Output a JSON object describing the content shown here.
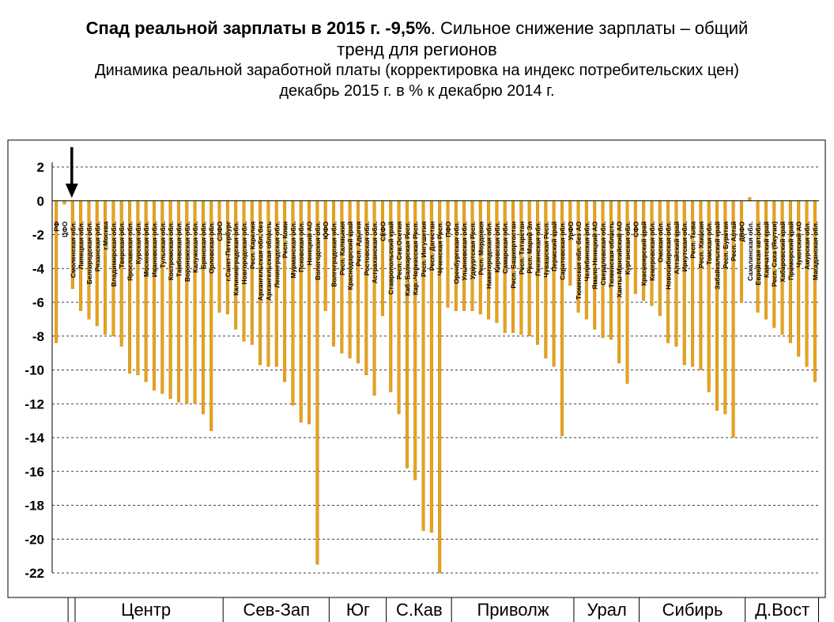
{
  "title": {
    "bold": "Спад реальной зарплаты в 2015 г. -9,5%",
    "rest": ". Сильное снижение зарплаты – общий",
    "line2": "тренд для регионов"
  },
  "subtitle": {
    "line1": "Динамика реальной заработной платы (корректировка на индекс потребительских цен)",
    "line2": "декабрь 2015 г. в % к декабрю 2014 г."
  },
  "colors": {
    "bar": "#e8a31c",
    "bar_edge": "#b9820f",
    "grid": "#000000"
  },
  "chart_data": {
    "type": "bar",
    "ylim": [
      -22,
      2
    ],
    "yticks": [
      2,
      0,
      -2,
      -4,
      -6,
      -8,
      -10,
      -12,
      -14,
      -16,
      -18,
      -20,
      -22
    ],
    "grid": "dashed horizontal",
    "annotation": "arrow pointing down at Смоленская обл.",
    "categories": [
      "РФ",
      "ЦФО",
      "Смоленская обл.",
      "Липецкая обл.",
      "Белгородская обл.",
      "Рязанская обл.",
      "г.Москва",
      "Владимирская обл.",
      "Тверская обл.",
      "Ярославская обл.",
      "Курская обл.",
      "Московская обл.",
      "Ивановская обл.",
      "Тульская обл.",
      "Костромская обл.",
      "Тамбовская обл.",
      "Воронежская обл.",
      "Калужская обл.",
      "Брянская обл.",
      "Орловская обл.",
      "СЗФО",
      "г.Санкт-Петербург",
      "Калининградская обл.",
      "Новгородская обл.",
      "Респ. Карелия",
      "Архангельская обл. без",
      "Архангельская область",
      "Ленинградская обл.",
      "Респ. Коми",
      "Мурманская обл.",
      "Псковская обл.",
      "Ненецкий АО",
      "Вологодская обл.",
      "ЮФО",
      "Волгоградская обл.",
      "Респ. Калмыкия",
      "Краснодарский край",
      "Респ. Адыгея",
      "Ростовская обл.",
      "Астраханская обл.",
      "СКФО",
      "Ставропольский край",
      "Респ. Сев.Осетия",
      "Каб.-Балкарская Респ.",
      "Кар.-Черкесская Респ.",
      "Респ. Ингушетия",
      "Респ. Дагестан",
      "Чеченская Респ.",
      "ПФО",
      "Оренбургская обл.",
      "Ульяновская обл.",
      "Удмуртская Респ.",
      "Респ. Мордовия",
      "Нижегородская обл.",
      "Кировская обл.",
      "Самарская обл.",
      "Респ. Башкортостан",
      "Респ. Татарстан",
      "Респ. Марий Эл",
      "Пензенская обл.",
      "Чувашская Респ.",
      "Пермский край",
      "Саратовская обл.",
      "УрФО",
      "Тюменская обл. без АО",
      "Челябинская обл.",
      "Ямало-Ненецкий АО",
      "Свердловская обл.",
      "Тюменская область",
      "Ханты-Мансийский АО",
      "Курганская обл.",
      "СФО",
      "Красноярский край",
      "Кемеровская обл.",
      "Омская обл.",
      "Новосибирская обл.",
      "Алтайский край",
      "Иркутская обл.",
      "Респ. Тыва",
      "Респ. Хакасия",
      "Томская обл.",
      "Забайкальский край",
      "Респ. Бурятия",
      "Респ. Алтай",
      "ДВФО",
      "Сахалинская обл.",
      "Еврейская авт.обл.",
      "Камчатский край",
      "Респ. Саха (Якутия)",
      "Хабаровский край",
      "Приморский край",
      "Чукотский АО",
      "Амурская обл.",
      "Магаданская обл."
    ],
    "values": [
      -8.4,
      -0.2,
      -5.2,
      -6.5,
      -7.0,
      -7.4,
      -7.9,
      -8.0,
      -8.6,
      -10.2,
      -10.3,
      -10.7,
      -11.2,
      -11.4,
      -11.7,
      -11.9,
      -12.0,
      -12.0,
      -12.6,
      -13.6,
      -6.6,
      -6.7,
      -7.6,
      -8.3,
      -8.5,
      -9.7,
      -9.8,
      -9.8,
      -10.7,
      -12.1,
      -13.1,
      -13.2,
      -21.5,
      -6.5,
      -8.6,
      -9.0,
      -9.3,
      -9.6,
      -10.3,
      -11.5,
      -6.8,
      -11.3,
      -12.6,
      -15.8,
      -16.5,
      -19.5,
      -19.6,
      -22.0,
      -6.3,
      -6.5,
      -6.5,
      -6.5,
      -6.7,
      -7.0,
      -7.2,
      -7.8,
      -7.8,
      -7.9,
      -8.0,
      -8.5,
      -9.3,
      -9.8,
      -13.9,
      -5.0,
      -6.6,
      -7.0,
      -7.6,
      -8.1,
      -8.2,
      -9.6,
      -10.8,
      -5.5,
      -5.9,
      -6.2,
      -6.8,
      -8.4,
      -8.6,
      -9.7,
      -9.8,
      -10.0,
      -11.3,
      -12.4,
      -12.6,
      -14.0,
      -6.0,
      0.2,
      -6.6,
      -7.0,
      -7.5,
      -7.9,
      -8.4,
      -9.2,
      -9.8,
      -10.7
    ],
    "groups": [
      {
        "label": "Центр",
        "start": 2,
        "end": 20
      },
      {
        "label": "Сев-Зап",
        "start": 21,
        "end": 33
      },
      {
        "label": "Юг",
        "start": 34,
        "end": 40
      },
      {
        "label": "С.Кав",
        "start": 41,
        "end": 48
      },
      {
        "label": "Приволж",
        "start": 49,
        "end": 63
      },
      {
        "label": "Урал",
        "start": 64,
        "end": 71
      },
      {
        "label": "Сибирь",
        "start": 72,
        "end": 84
      },
      {
        "label": "Д.Вост",
        "start": 85,
        "end": 93
      }
    ]
  }
}
